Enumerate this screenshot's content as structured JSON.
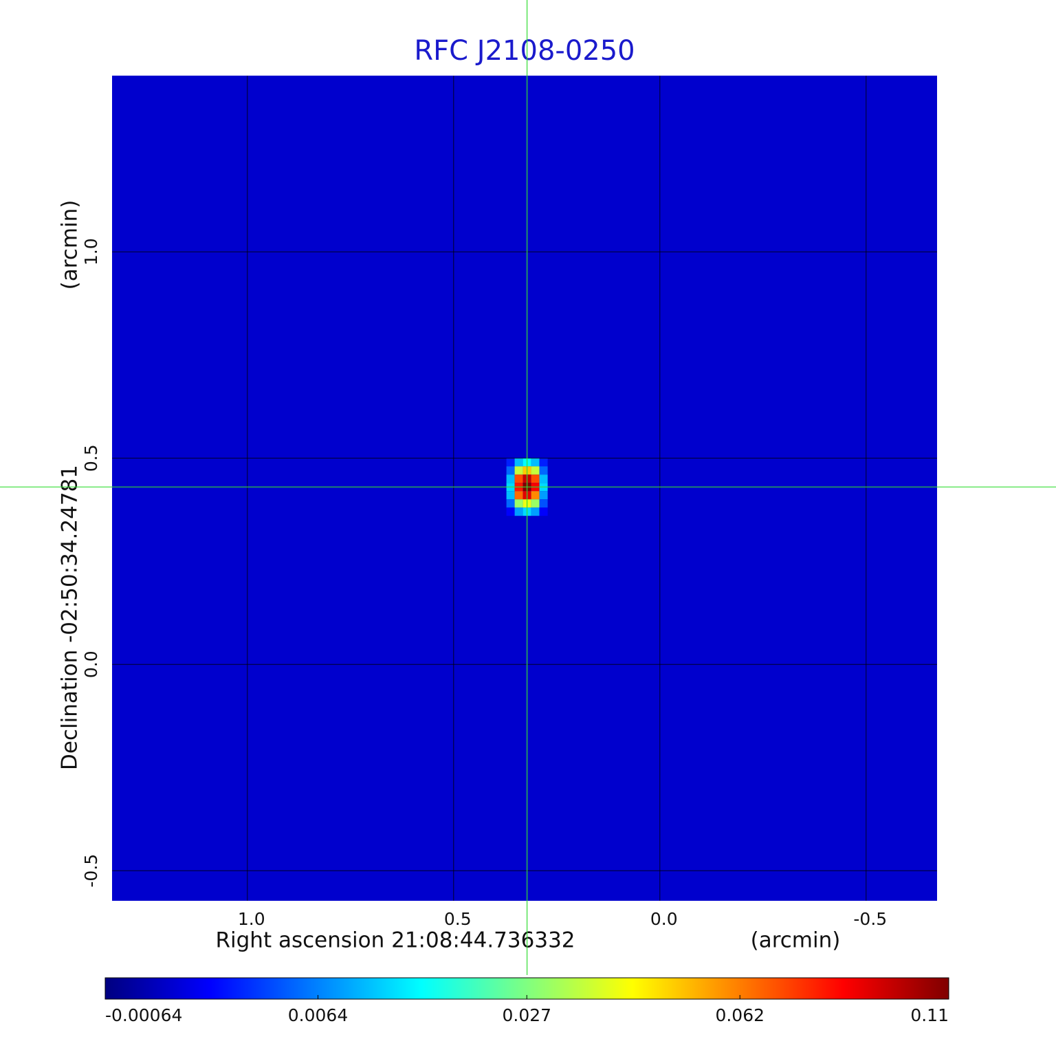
{
  "chart_data": {
    "type": "heatmap",
    "title": "RFC J2108-0250",
    "x_label": "Right ascension  21:08:44.736332",
    "x_unit": "(arcmin)",
    "y_label": "Declination  -02:50:34.24781",
    "y_unit": "(arcmin)",
    "xlim": [
      1.328,
      -0.672
    ],
    "ylim": [
      -0.573,
      1.427
    ],
    "xticks": [
      {
        "value": 1,
        "label": "1.0"
      },
      0.5,
      {
        "value": 0,
        "label": "0.0"
      },
      -0.5
    ],
    "yticks": [
      {
        "value": 1,
        "label": "1.0"
      },
      0.5,
      {
        "value": 0,
        "label": "0.0"
      },
      -0.5
    ],
    "grid": true,
    "colormap": "jet",
    "colorbar_scale": "sqrt",
    "colorbar_lim": [
      -0.00064,
      0.11
    ],
    "colorbar_ticks": [
      -0.00064,
      0.0064,
      0.027,
      0.062,
      0.11
    ],
    "background": 0.0,
    "pixel_size": 0.02,
    "source": {
      "x": [
        0.362,
        0.342,
        0.322,
        0.302,
        0.282
      ],
      "y": [
        0.49,
        0.47,
        0.45,
        0.43,
        0.41,
        0.39,
        0.37
      ],
      "values": [
        [
          0.002,
          0.01,
          0.015,
          0.01,
          0.002
        ],
        [
          0.005,
          0.035,
          0.05,
          0.035,
          0.005
        ],
        [
          0.01,
          0.07,
          0.095,
          0.07,
          0.01
        ],
        [
          0.012,
          0.08,
          0.11,
          0.085,
          0.012
        ],
        [
          0.01,
          0.065,
          0.09,
          0.06,
          0.008
        ],
        [
          0.005,
          0.03,
          0.04,
          0.03,
          0.004
        ],
        [
          0.001,
          0.008,
          0.012,
          0.008,
          0.001
        ]
      ]
    },
    "crosshair": {
      "x": 0.322,
      "y": 0.43,
      "color": "#33dd33"
    }
  }
}
